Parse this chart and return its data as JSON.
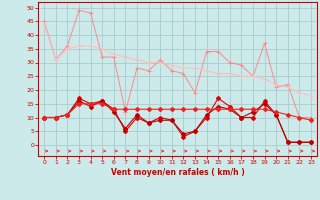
{
  "x": [
    0,
    1,
    2,
    3,
    4,
    5,
    6,
    7,
    8,
    9,
    10,
    11,
    12,
    13,
    14,
    15,
    16,
    17,
    18,
    19,
    20,
    21,
    22,
    23
  ],
  "line1": [
    45,
    31,
    36,
    49,
    48,
    32,
    32,
    12,
    28,
    27,
    31,
    27,
    26,
    19,
    34,
    34,
    30,
    29,
    25,
    37,
    21,
    22,
    10,
    10
  ],
  "line2": [
    44,
    31,
    35,
    36,
    36,
    35,
    33,
    32,
    31,
    30,
    30,
    29,
    28,
    28,
    27,
    26,
    26,
    25,
    25,
    24,
    22,
    21,
    19,
    18
  ],
  "line3": [
    10,
    10,
    11,
    17,
    15,
    16,
    13,
    5,
    10,
    8,
    10,
    9,
    3,
    5,
    10,
    17,
    14,
    10,
    10,
    16,
    11,
    1,
    1,
    1
  ],
  "line4": [
    10,
    10,
    11,
    16,
    14,
    16,
    12,
    6,
    11,
    8,
    9,
    9,
    4,
    5,
    11,
    14,
    13,
    10,
    12,
    15,
    11,
    1,
    1,
    1
  ],
  "line5": [
    10,
    10,
    11,
    15,
    15,
    15,
    13,
    13,
    13,
    13,
    13,
    13,
    13,
    13,
    13,
    13,
    13,
    13,
    13,
    13,
    12,
    11,
    10,
    9
  ],
  "bg_color": "#cceaea",
  "grid_color": "#aacccc",
  "line1_color": "#ff8888",
  "line2_color": "#ffbbbb",
  "line3_color": "#dd0000",
  "line4_color": "#bb0000",
  "line5_color": "#ee2222",
  "arrow_color": "#ee3333",
  "xlabel": "Vent moyen/en rafales ( km/h )",
  "xlabel_color": "#cc0000",
  "tick_color": "#cc0000",
  "axis_color": "#cc0000",
  "ylim": [
    -4,
    52
  ],
  "xlim": [
    -0.5,
    23.5
  ],
  "yticks": [
    0,
    5,
    10,
    15,
    20,
    25,
    30,
    35,
    40,
    45,
    50
  ],
  "xticks": [
    0,
    1,
    2,
    3,
    4,
    5,
    6,
    7,
    8,
    9,
    10,
    11,
    12,
    13,
    14,
    15,
    16,
    17,
    18,
    19,
    20,
    21,
    22,
    23
  ]
}
